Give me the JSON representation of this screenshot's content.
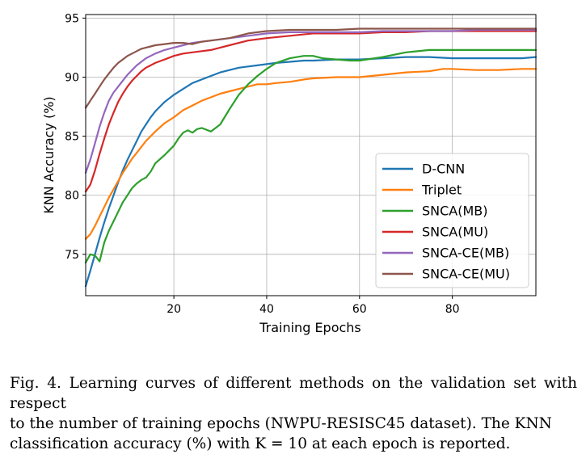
{
  "chart_data": {
    "type": "line",
    "xlabel": "Training Epochs",
    "ylabel": "KNN Accuracy (%)",
    "xlim": [
      1,
      98
    ],
    "ylim": [
      71.5,
      95.3
    ],
    "xticks": [
      20,
      40,
      60,
      80
    ],
    "yticks": [
      75,
      80,
      85,
      90,
      95
    ],
    "grid": true,
    "legend_position": "lower-right",
    "series": [
      {
        "name": "D-CNN",
        "color": "#1f77b4",
        "points": [
          [
            1,
            72.3
          ],
          [
            2,
            73.6
          ],
          [
            3,
            75.0
          ],
          [
            4,
            76.4
          ],
          [
            5,
            77.7
          ],
          [
            6,
            78.9
          ],
          [
            7,
            80.0
          ],
          [
            8,
            81.1
          ],
          [
            9,
            82.1
          ],
          [
            10,
            83.0
          ],
          [
            11,
            83.8
          ],
          [
            12,
            84.6
          ],
          [
            13,
            85.4
          ],
          [
            14,
            86.0
          ],
          [
            15,
            86.6
          ],
          [
            16,
            87.1
          ],
          [
            18,
            87.9
          ],
          [
            20,
            88.5
          ],
          [
            22,
            89.0
          ],
          [
            24,
            89.5
          ],
          [
            26,
            89.8
          ],
          [
            28,
            90.1
          ],
          [
            30,
            90.4
          ],
          [
            32,
            90.6
          ],
          [
            34,
            90.8
          ],
          [
            36,
            90.9
          ],
          [
            38,
            91.0
          ],
          [
            40,
            91.1
          ],
          [
            42,
            91.2
          ],
          [
            45,
            91.3
          ],
          [
            48,
            91.4
          ],
          [
            50,
            91.4
          ],
          [
            55,
            91.5
          ],
          [
            60,
            91.5
          ],
          [
            65,
            91.6
          ],
          [
            70,
            91.7
          ],
          [
            75,
            91.7
          ],
          [
            80,
            91.6
          ],
          [
            85,
            91.6
          ],
          [
            90,
            91.6
          ],
          [
            95,
            91.6
          ],
          [
            98,
            91.7
          ]
        ]
      },
      {
        "name": "Triplet",
        "color": "#ff7f0e",
        "points": [
          [
            1,
            76.3
          ],
          [
            2,
            76.7
          ],
          [
            3,
            77.4
          ],
          [
            4,
            78.2
          ],
          [
            5,
            79.0
          ],
          [
            6,
            79.8
          ],
          [
            7,
            80.5
          ],
          [
            8,
            81.2
          ],
          [
            9,
            81.9
          ],
          [
            10,
            82.5
          ],
          [
            11,
            83.1
          ],
          [
            12,
            83.6
          ],
          [
            13,
            84.1
          ],
          [
            14,
            84.6
          ],
          [
            15,
            85.0
          ],
          [
            16,
            85.4
          ],
          [
            18,
            86.1
          ],
          [
            20,
            86.6
          ],
          [
            22,
            87.2
          ],
          [
            24,
            87.6
          ],
          [
            26,
            88.0
          ],
          [
            28,
            88.3
          ],
          [
            30,
            88.6
          ],
          [
            32,
            88.8
          ],
          [
            34,
            89.0
          ],
          [
            36,
            89.2
          ],
          [
            38,
            89.4
          ],
          [
            40,
            89.4
          ],
          [
            42,
            89.5
          ],
          [
            45,
            89.6
          ],
          [
            48,
            89.8
          ],
          [
            50,
            89.9
          ],
          [
            55,
            90.0
          ],
          [
            60,
            90.0
          ],
          [
            65,
            90.2
          ],
          [
            70,
            90.4
          ],
          [
            75,
            90.5
          ],
          [
            78,
            90.7
          ],
          [
            80,
            90.7
          ],
          [
            85,
            90.6
          ],
          [
            90,
            90.6
          ],
          [
            95,
            90.7
          ],
          [
            98,
            90.7
          ]
        ]
      },
      {
        "name": "SNCA(MB)",
        "color": "#2ca02c",
        "points": [
          [
            1,
            74.3
          ],
          [
            2,
            75.0
          ],
          [
            3,
            74.9
          ],
          [
            4,
            74.4
          ],
          [
            5,
            76.0
          ],
          [
            6,
            77.0
          ],
          [
            7,
            77.8
          ],
          [
            8,
            78.6
          ],
          [
            9,
            79.4
          ],
          [
            10,
            80.0
          ],
          [
            11,
            80.6
          ],
          [
            12,
            81.0
          ],
          [
            13,
            81.3
          ],
          [
            14,
            81.5
          ],
          [
            15,
            82.0
          ],
          [
            16,
            82.7
          ],
          [
            18,
            83.4
          ],
          [
            20,
            84.2
          ],
          [
            21,
            84.8
          ],
          [
            22,
            85.3
          ],
          [
            23,
            85.5
          ],
          [
            24,
            85.3
          ],
          [
            25,
            85.6
          ],
          [
            26,
            85.7
          ],
          [
            28,
            85.4
          ],
          [
            30,
            86.0
          ],
          [
            32,
            87.3
          ],
          [
            34,
            88.5
          ],
          [
            36,
            89.4
          ],
          [
            38,
            90.1
          ],
          [
            40,
            90.7
          ],
          [
            42,
            91.2
          ],
          [
            45,
            91.6
          ],
          [
            48,
            91.8
          ],
          [
            50,
            91.8
          ],
          [
            52,
            91.6
          ],
          [
            55,
            91.5
          ],
          [
            58,
            91.4
          ],
          [
            60,
            91.4
          ],
          [
            65,
            91.7
          ],
          [
            70,
            92.1
          ],
          [
            75,
            92.3
          ],
          [
            80,
            92.3
          ],
          [
            85,
            92.3
          ],
          [
            90,
            92.3
          ],
          [
            98,
            92.3
          ]
        ]
      },
      {
        "name": "SNCA(MU)",
        "color": "#d62728",
        "points": [
          [
            1,
            80.3
          ],
          [
            2,
            80.9
          ],
          [
            3,
            82.1
          ],
          [
            4,
            83.5
          ],
          [
            5,
            84.8
          ],
          [
            6,
            86.0
          ],
          [
            7,
            87.0
          ],
          [
            8,
            87.9
          ],
          [
            9,
            88.6
          ],
          [
            10,
            89.2
          ],
          [
            11,
            89.7
          ],
          [
            12,
            90.1
          ],
          [
            13,
            90.5
          ],
          [
            14,
            90.8
          ],
          [
            15,
            91.0
          ],
          [
            16,
            91.2
          ],
          [
            18,
            91.5
          ],
          [
            20,
            91.8
          ],
          [
            22,
            92.0
          ],
          [
            24,
            92.1
          ],
          [
            26,
            92.2
          ],
          [
            28,
            92.3
          ],
          [
            30,
            92.5
          ],
          [
            32,
            92.7
          ],
          [
            34,
            92.9
          ],
          [
            36,
            93.1
          ],
          [
            38,
            93.2
          ],
          [
            40,
            93.3
          ],
          [
            45,
            93.5
          ],
          [
            50,
            93.7
          ],
          [
            55,
            93.7
          ],
          [
            60,
            93.7
          ],
          [
            65,
            93.8
          ],
          [
            70,
            93.8
          ],
          [
            75,
            93.9
          ],
          [
            80,
            93.9
          ],
          [
            85,
            93.9
          ],
          [
            90,
            93.9
          ],
          [
            98,
            93.9
          ]
        ]
      },
      {
        "name": "SNCA-CE(MB)",
        "color": "#9467bd",
        "points": [
          [
            1,
            81.9
          ],
          [
            2,
            83.0
          ],
          [
            3,
            84.4
          ],
          [
            4,
            85.8
          ],
          [
            5,
            87.0
          ],
          [
            6,
            88.0
          ],
          [
            7,
            88.7
          ],
          [
            8,
            89.2
          ],
          [
            9,
            89.7
          ],
          [
            10,
            90.2
          ],
          [
            11,
            90.6
          ],
          [
            12,
            91.0
          ],
          [
            13,
            91.3
          ],
          [
            14,
            91.6
          ],
          [
            15,
            91.8
          ],
          [
            16,
            92.0
          ],
          [
            18,
            92.3
          ],
          [
            20,
            92.5
          ],
          [
            22,
            92.7
          ],
          [
            24,
            92.9
          ],
          [
            26,
            93.0
          ],
          [
            28,
            93.1
          ],
          [
            30,
            93.2
          ],
          [
            32,
            93.3
          ],
          [
            34,
            93.4
          ],
          [
            36,
            93.5
          ],
          [
            38,
            93.6
          ],
          [
            40,
            93.7
          ],
          [
            45,
            93.8
          ],
          [
            50,
            93.8
          ],
          [
            55,
            93.8
          ],
          [
            60,
            93.8
          ],
          [
            65,
            93.9
          ],
          [
            70,
            93.9
          ],
          [
            75,
            93.9
          ],
          [
            80,
            93.9
          ],
          [
            85,
            94.0
          ],
          [
            90,
            94.0
          ],
          [
            98,
            94.0
          ]
        ]
      },
      {
        "name": "SNCA-CE(MU)",
        "color": "#8c564b",
        "points": [
          [
            1,
            87.4
          ],
          [
            2,
            88.0
          ],
          [
            3,
            88.6
          ],
          [
            4,
            89.2
          ],
          [
            5,
            89.8
          ],
          [
            6,
            90.3
          ],
          [
            7,
            90.8
          ],
          [
            8,
            91.2
          ],
          [
            9,
            91.5
          ],
          [
            10,
            91.8
          ],
          [
            11,
            92.0
          ],
          [
            12,
            92.2
          ],
          [
            13,
            92.4
          ],
          [
            14,
            92.5
          ],
          [
            15,
            92.6
          ],
          [
            16,
            92.7
          ],
          [
            18,
            92.8
          ],
          [
            20,
            92.9
          ],
          [
            22,
            92.9
          ],
          [
            24,
            92.8
          ],
          [
            26,
            93.0
          ],
          [
            28,
            93.1
          ],
          [
            30,
            93.2
          ],
          [
            32,
            93.3
          ],
          [
            34,
            93.5
          ],
          [
            36,
            93.7
          ],
          [
            38,
            93.8
          ],
          [
            40,
            93.9
          ],
          [
            45,
            94.0
          ],
          [
            50,
            94.0
          ],
          [
            55,
            94.0
          ],
          [
            60,
            94.1
          ],
          [
            65,
            94.1
          ],
          [
            70,
            94.1
          ],
          [
            75,
            94.1
          ],
          [
            80,
            94.1
          ],
          [
            85,
            94.1
          ],
          [
            90,
            94.1
          ],
          [
            98,
            94.1
          ]
        ]
      }
    ]
  },
  "caption": {
    "line1": "Fig. 4.  Learning curves of different methods on the validation set with respect",
    "line2": "to the number of training epochs (NWPU-RESISC45 dataset). The KNN",
    "line3": "classification accuracy (%) with K = 10 at each epoch is reported."
  }
}
